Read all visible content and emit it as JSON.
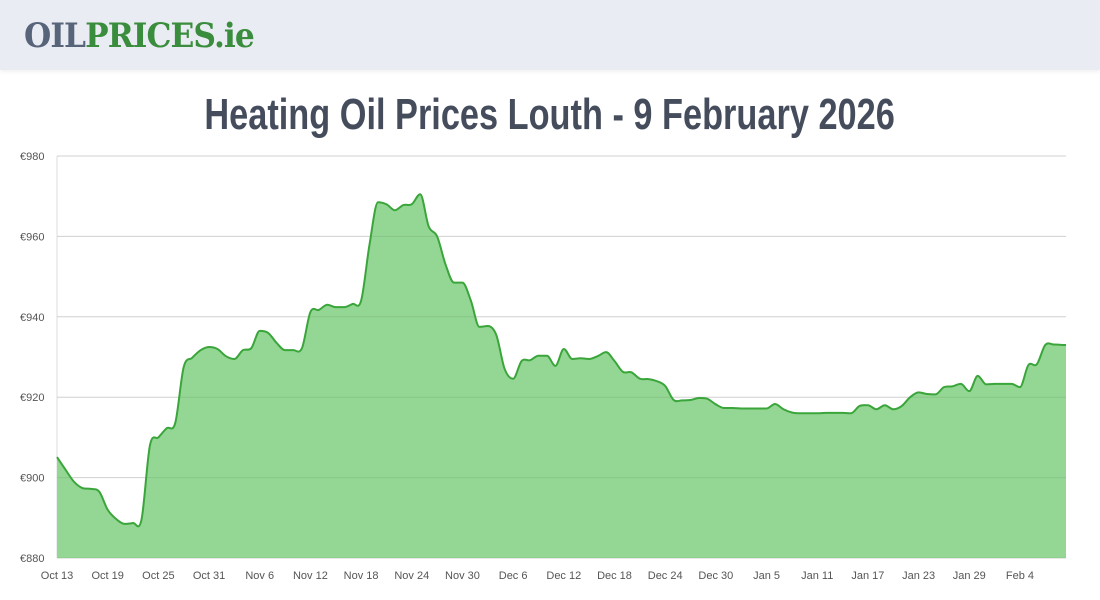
{
  "header": {
    "logo_part1": "OIL",
    "logo_part2": "PRICES.ie"
  },
  "page_title": "Heating Oil Prices Louth - 9 February 2026",
  "colors": {
    "line": "#3aa53a",
    "fill": "#92d692",
    "grid": "#e3e3e3",
    "logo_gray": "#58647a",
    "logo_green": "#3a8d3d"
  },
  "chart_data": {
    "type": "area",
    "title": "",
    "xlabel": "",
    "ylabel": "",
    "start_date": "2025-10-13",
    "x_ticks": [
      "Oct 13",
      "Oct 19",
      "Oct 25",
      "Oct 31",
      "Nov 6",
      "Nov 12",
      "Nov 18",
      "Nov 24",
      "Nov 30",
      "Dec 6",
      "Dec 12",
      "Dec 18",
      "Dec 24",
      "Dec 30",
      "Jan 5",
      "Jan 11",
      "Jan 17",
      "Jan 23",
      "Jan 29",
      "Feb 4"
    ],
    "y_ticks": [
      "€880",
      "€900",
      "€920",
      "€940",
      "€960",
      "€980"
    ],
    "ylim": [
      880,
      980
    ],
    "grid": true,
    "values": [
      905.1,
      902,
      899,
      897.4,
      897.2,
      896.5,
      892,
      889.7,
      888.5,
      888.7,
      889.5,
      908,
      910,
      912.3,
      913.6,
      927.5,
      929.8,
      931.7,
      932.5,
      932,
      930.2,
      929.5,
      931.7,
      932.2,
      936.5,
      936,
      933.5,
      931.7,
      931.7,
      932.2,
      941.2,
      941.7,
      943,
      942.4,
      942.4,
      943.2,
      944,
      958,
      968.5,
      968,
      966.5,
      967.8,
      968,
      970.5,
      962.5,
      960,
      953,
      948.5,
      948.5,
      944,
      937.5,
      937.7,
      935.5,
      927,
      924.6,
      929,
      929.2,
      930.3,
      930.3,
      927.8,
      932,
      929.5,
      929.7,
      929.5,
      930.2,
      931.2,
      929,
      926.3,
      926.2,
      924.6,
      924.5,
      924,
      922.8,
      919.3,
      919.2,
      919.3,
      919.8,
      919.6,
      918.2,
      917.3,
      917.3,
      917.2,
      917.2,
      917.2,
      917.2,
      918.3,
      917,
      916.2,
      916,
      916,
      916,
      916.1,
      916.1,
      916.1,
      916,
      917.8,
      918,
      917,
      918,
      917,
      917.8,
      920,
      921.2,
      920.8,
      920.7,
      922.5,
      922.7,
      923.3,
      921.5,
      925.3,
      923.2,
      923.3,
      923.3,
      923.3,
      922.5,
      928,
      928.2,
      933,
      933.1,
      933
    ]
  }
}
